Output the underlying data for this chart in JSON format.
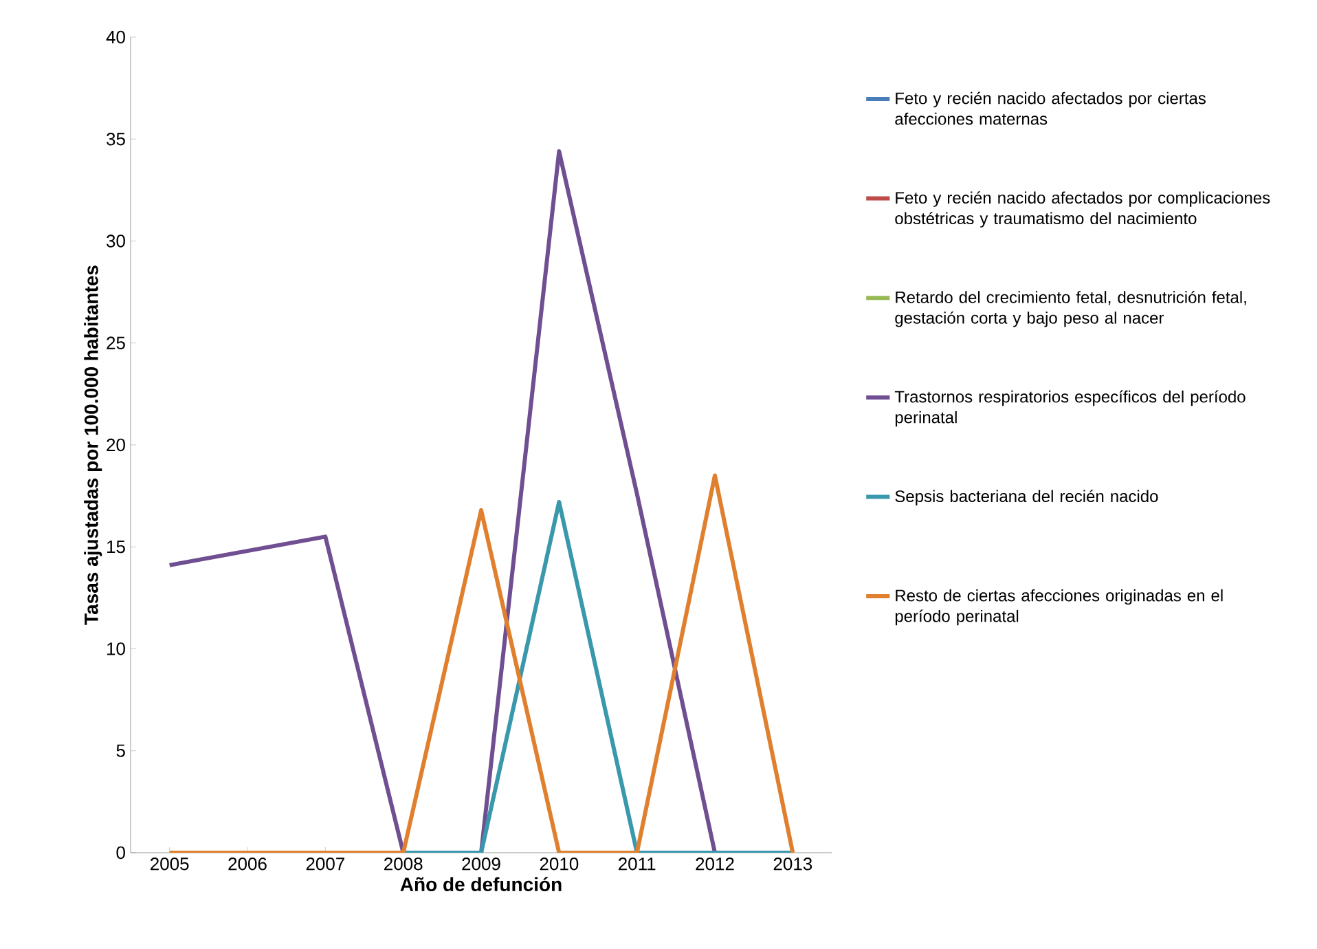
{
  "chart_data": {
    "type": "line",
    "xlabel": "Año de defunción",
    "ylabel": "Tasas ajustadas por 100.000 habitantes",
    "categories": [
      "2005",
      "2006",
      "2007",
      "2008",
      "2009",
      "2010",
      "2011",
      "2012",
      "2013"
    ],
    "ylim": [
      0,
      40
    ],
    "yticks": [
      0,
      5,
      10,
      15,
      20,
      25,
      30,
      35,
      40
    ],
    "grid": false,
    "legend": "right",
    "marker": "none",
    "line_style": "solid",
    "series": [
      {
        "name": "Feto y recién nacido afectados por ciertas afecciones maternas",
        "color": "#4a7ebb",
        "values": [
          null,
          null,
          null,
          null,
          null,
          null,
          null,
          null,
          null
        ]
      },
      {
        "name": "Feto y recién nacido afectados por complicaciones obstétricas y traumatismo del nacimiento",
        "color": "#be4b48",
        "values": [
          null,
          null,
          null,
          null,
          null,
          null,
          null,
          null,
          null
        ]
      },
      {
        "name": "Retardo del crecimiento fetal, desnutrición fetal, gestación corta y bajo peso al nacer",
        "color": "#98b954",
        "values": [
          null,
          null,
          null,
          null,
          null,
          null,
          null,
          null,
          null
        ]
      },
      {
        "name": "Trastornos respiratorios específicos del período perinatal",
        "color": "#6f4f92",
        "values": [
          14.1,
          14.8,
          15.5,
          0,
          0,
          34.4,
          17.6,
          0,
          0
        ]
      },
      {
        "name": "Sepsis bacteriana del recién nacido",
        "color": "#3a98ad",
        "values": [
          null,
          null,
          null,
          0,
          0,
          17.2,
          0,
          0,
          0
        ]
      },
      {
        "name": "Resto de ciertas afecciones originadas en el período perinatal",
        "color": "#e0802f",
        "values": [
          0,
          0,
          0,
          0,
          16.8,
          0,
          0,
          18.5,
          0
        ]
      }
    ]
  }
}
